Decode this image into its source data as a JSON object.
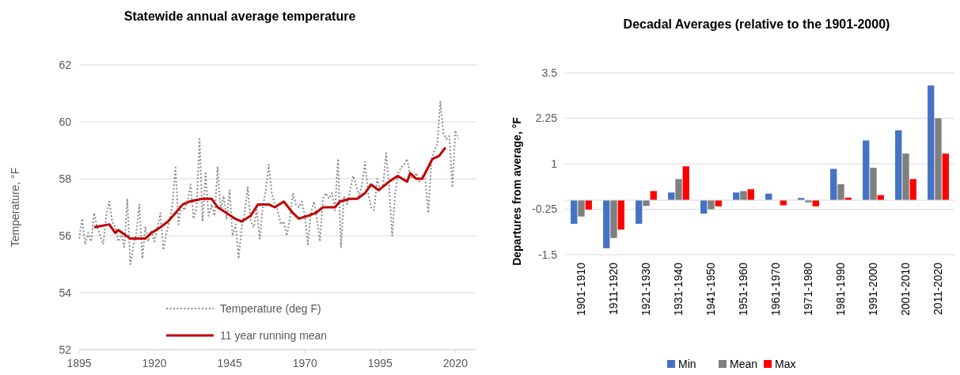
{
  "chart_data": [
    {
      "type": "line",
      "title": "Statewide annual average temperature",
      "ylabel": "Temperature, °F",
      "xlim": [
        1895,
        2027
      ],
      "xticks": [
        1895,
        1920,
        1945,
        1970,
        1995,
        2020
      ],
      "ylim": [
        52,
        62
      ],
      "yticks": [
        52,
        54,
        56,
        58,
        60,
        62
      ],
      "grid": "y",
      "legend": "bottom",
      "x": [
        1895,
        1896,
        1897,
        1898,
        1899,
        1900,
        1901,
        1902,
        1903,
        1904,
        1905,
        1906,
        1907,
        1908,
        1909,
        1910,
        1911,
        1912,
        1913,
        1914,
        1915,
        1916,
        1917,
        1918,
        1919,
        1920,
        1921,
        1922,
        1923,
        1924,
        1925,
        1926,
        1927,
        1928,
        1929,
        1930,
        1931,
        1932,
        1933,
        1934,
        1935,
        1936,
        1937,
        1938,
        1939,
        1940,
        1941,
        1942,
        1943,
        1944,
        1945,
        1946,
        1947,
        1948,
        1949,
        1950,
        1951,
        1952,
        1953,
        1954,
        1955,
        1956,
        1957,
        1958,
        1959,
        1960,
        1961,
        1962,
        1963,
        1964,
        1965,
        1966,
        1967,
        1968,
        1969,
        1970,
        1971,
        1972,
        1973,
        1974,
        1975,
        1976,
        1977,
        1978,
        1979,
        1980,
        1981,
        1982,
        1983,
        1984,
        1985,
        1986,
        1987,
        1988,
        1989,
        1990,
        1991,
        1992,
        1993,
        1994,
        1995,
        1996,
        1997,
        1998,
        1999,
        2000,
        2001,
        2002,
        2003,
        2004,
        2005,
        2006,
        2007,
        2008,
        2009,
        2010,
        2011,
        2012,
        2013,
        2014,
        2015,
        2016,
        2017,
        2018,
        2019,
        2020,
        2021
      ],
      "series": [
        {
          "name": "Temperature (deg F)",
          "color": "#8c8c8c",
          "line_style": "dotted",
          "values": [
            55.9,
            56.6,
            55.7,
            56.1,
            55.8,
            56.8,
            56.3,
            56.0,
            55.7,
            56.7,
            57.2,
            56.5,
            56.3,
            55.8,
            56.1,
            55.6,
            57.3,
            55.0,
            55.6,
            56.1,
            57.1,
            55.2,
            56.3,
            55.8,
            56.2,
            55.8,
            56.3,
            56.8,
            55.5,
            56.1,
            56.5,
            57.1,
            58.4,
            56.4,
            57.1,
            56.9,
            57.2,
            57.8,
            56.6,
            57.0,
            59.4,
            56.5,
            58.2,
            56.7,
            57.1,
            56.7,
            58.4,
            56.9,
            57.4,
            56.6,
            57.6,
            56.0,
            56.4,
            55.2,
            56.3,
            56.8,
            57.7,
            56.5,
            56.3,
            56.9,
            55.9,
            57.0,
            57.6,
            58.5,
            57.5,
            57.1,
            56.9,
            56.4,
            56.5,
            56.0,
            56.6,
            57.5,
            57.1,
            57.0,
            57.2,
            56.7,
            55.7,
            56.8,
            57.2,
            56.6,
            55.8,
            57.3,
            57.5,
            57.3,
            57.5,
            56.9,
            58.7,
            55.6,
            57.4,
            57.1,
            57.6,
            58.1,
            57.8,
            57.4,
            57.8,
            58.6,
            57.5,
            57.0,
            56.9,
            58.0,
            57.6,
            57.8,
            58.9,
            57.7,
            56.0,
            57.5,
            58.2,
            58.4,
            58.5,
            58.7,
            58.1,
            58.0,
            58.2,
            57.9,
            58.1,
            58.0,
            56.8,
            58.6,
            59.0,
            59.2,
            60.7,
            59.6,
            59.4,
            59.5,
            57.7,
            59.7,
            59.4
          ]
        },
        {
          "name": "11 year running mean",
          "color": "#c00000",
          "line_style": "solid",
          "x": [
            1900,
            1905,
            1907,
            1908,
            1912,
            1917,
            1919,
            1922,
            1924.5,
            1927,
            1929.4,
            1931.6,
            1936,
            1939,
            1941,
            1944,
            1946.8,
            1949,
            1952,
            1954.4,
            1958,
            1960,
            1963,
            1966,
            1968,
            1971,
            1973.6,
            1976,
            1980,
            1981.6,
            1985,
            1987.4,
            1990,
            1992,
            1994.5,
            1998,
            2000.8,
            2004,
            2005,
            2007,
            2009,
            2012.4,
            2014.6,
            2016.7
          ],
          "values": [
            56.3,
            56.4,
            56.1,
            56.2,
            55.9,
            55.9,
            56.1,
            56.3,
            56.5,
            56.8,
            57.1,
            57.2,
            57.3,
            57.3,
            57.0,
            56.8,
            56.6,
            56.5,
            56.7,
            57.1,
            57.1,
            57.0,
            57.2,
            56.8,
            56.6,
            56.7,
            56.8,
            57.0,
            57.0,
            57.2,
            57.3,
            57.3,
            57.5,
            57.8,
            57.6,
            57.9,
            58.1,
            57.9,
            58.2,
            58.0,
            58.0,
            58.7,
            58.8,
            59.1
          ]
        }
      ]
    },
    {
      "type": "bar",
      "title": "Decadal Averages (relative to the 1901-2000)",
      "ylabel": "Departures from  average, °F",
      "ylim": [
        -1.5,
        3.5
      ],
      "yticks": [
        -1.5,
        -0.25,
        1,
        2.25,
        3.5
      ],
      "grid": "y",
      "legend": "bottom",
      "categories": [
        "1901-1910",
        "1911-1920",
        "1921-1930",
        "1931-1940",
        "1941-1950",
        "1951-1960",
        "1961-1970",
        "1971-1980",
        "1981-1990",
        "1991-2000",
        "2001-2010",
        "2011-2020"
      ],
      "series": [
        {
          "name": "Min",
          "color": "#4472c4",
          "values": [
            -0.65,
            -1.32,
            -0.65,
            0.21,
            -0.37,
            0.21,
            0.18,
            0.06,
            0.86,
            1.64,
            1.92,
            3.15
          ]
        },
        {
          "name": "Mean",
          "color": "#7f7f7f",
          "values": [
            -0.45,
            -1.04,
            -0.16,
            0.58,
            -0.25,
            0.25,
            0,
            -0.06,
            0.44,
            0.89,
            1.28,
            2.25
          ]
        },
        {
          "name": "Max",
          "color": "#ff0000",
          "values": [
            -0.26,
            -0.81,
            0.25,
            0.93,
            -0.17,
            0.3,
            -0.14,
            -0.17,
            0.07,
            0.14,
            0.58,
            1.28
          ]
        }
      ]
    }
  ]
}
